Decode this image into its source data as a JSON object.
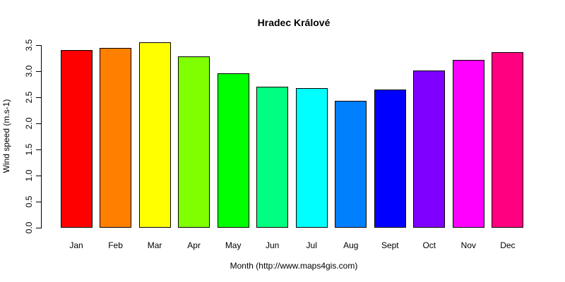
{
  "chart_data": {
    "type": "bar",
    "title": "Hradec Králové",
    "xlabel": "Month (http://www.maps4gis.com)",
    "ylabel": "Wind speed (m.s-1)",
    "categories": [
      "Jan",
      "Feb",
      "Mar",
      "Apr",
      "May",
      "Jun",
      "Jul",
      "Aug",
      "Sept",
      "Oct",
      "Nov",
      "Dec"
    ],
    "values": [
      3.4,
      3.44,
      3.55,
      3.28,
      2.96,
      2.7,
      2.67,
      2.43,
      2.65,
      3.02,
      3.22,
      3.37
    ],
    "bar_colors": [
      "#FF0000",
      "#FF8000",
      "#FFFF00",
      "#80FF00",
      "#00FF00",
      "#00FF80",
      "#00FFFF",
      "#0080FF",
      "#0000FF",
      "#8000FF",
      "#FF00FF",
      "#FF0080"
    ],
    "bar_border_color": "#000000",
    "axis_color": "#000000",
    "text_color": "#000000",
    "background_color": "#FFFFFF",
    "ylim": [
      0.0,
      3.5
    ],
    "yticks": [
      0.0,
      0.5,
      1.0,
      1.5,
      2.0,
      2.5,
      3.0,
      3.5
    ],
    "ytick_labels": [
      "0.0",
      "0.5",
      "1.0",
      "1.5",
      "2.0",
      "2.5",
      "3.0",
      "3.5"
    ],
    "grid": false,
    "legend": null
  }
}
